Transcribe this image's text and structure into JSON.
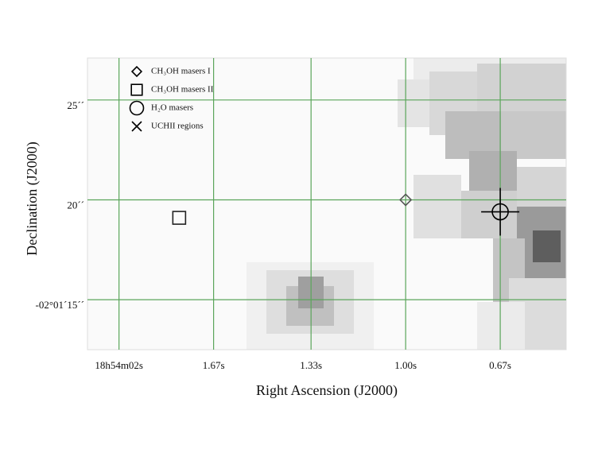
{
  "chart_data": {
    "type": "scatter",
    "xlabel": "Right Ascension (J2000)",
    "ylabel": "Declination (J2000)",
    "xlim": [
      2.11,
      0.44
    ],
    "ylim": [
      12.5,
      27.1
    ],
    "xticks": [
      {
        "value": 2.0,
        "label": "18h54m02s"
      },
      {
        "value": 1.67,
        "label": "1.67s"
      },
      {
        "value": 1.33,
        "label": "1.33s"
      },
      {
        "value": 1.0,
        "label": "1.00s"
      },
      {
        "value": 0.67,
        "label": "0.67s"
      }
    ],
    "yticks": [
      {
        "value": 25,
        "label": "25´´"
      },
      {
        "value": 20,
        "label": "20´´"
      },
      {
        "value": 15,
        "label": "-02°01´15´´"
      }
    ],
    "grid": true,
    "grid_color": "#5aa55a",
    "legend": "upper left",
    "series": [
      {
        "name": "CH₃OH masers I",
        "marker": "diamond",
        "color": "#555555",
        "x": [
          1.0
        ],
        "values": [
          20.0
        ]
      },
      {
        "name": "CH₃OH masers II",
        "marker": "square",
        "color": "#222222",
        "x": [
          1.79
        ],
        "values": [
          19.1
        ]
      },
      {
        "name": "H₂O masers",
        "marker": "circle",
        "color": "#000000",
        "x": [
          0.67
        ],
        "values": [
          19.4
        ]
      },
      {
        "name": "UCHII regions",
        "marker": "cross",
        "color": "#000000",
        "x": [
          0.67
        ],
        "values": [
          19.4
        ]
      }
    ]
  }
}
